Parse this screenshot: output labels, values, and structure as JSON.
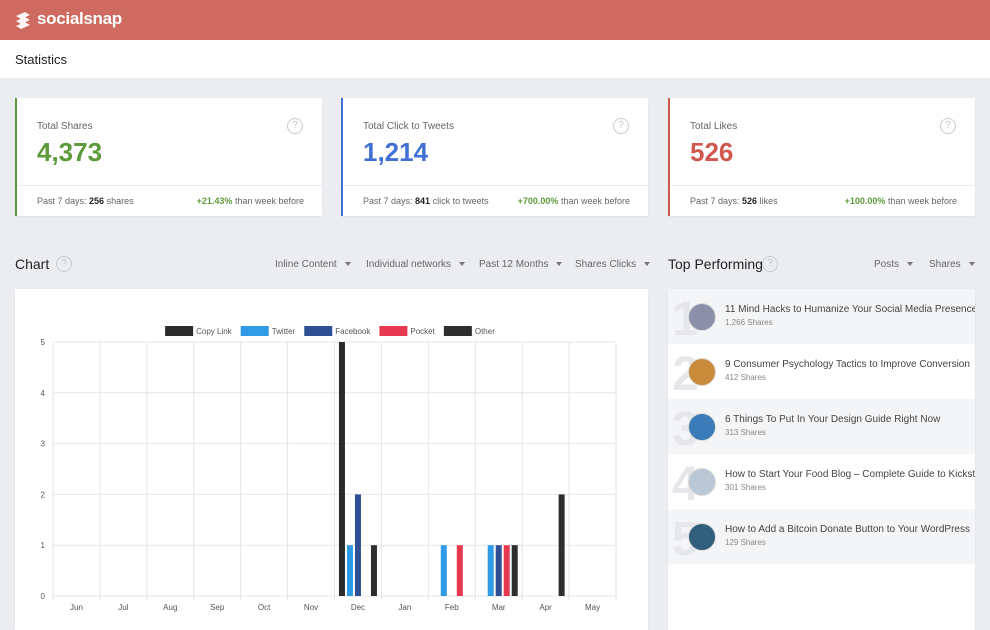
{
  "header": {
    "brand": "socialsnap"
  },
  "page_title": "Statistics",
  "help_icon": "?",
  "stat_cards": [
    {
      "label": "Total Shares",
      "value": "4,373",
      "color": "#5c9a3b",
      "period": "Past 7 days:",
      "count": "256",
      "unit": "shares",
      "change": "+21.43%",
      "comparison": "than week before"
    },
    {
      "label": "Total Click to Tweets",
      "value": "1,214",
      "color": "#4271d6",
      "period": "Past 7 days:",
      "count": "841",
      "unit": "click to tweets",
      "change": "+700.00%",
      "comparison": "than week before"
    },
    {
      "label": "Total Likes",
      "value": "526",
      "color": "#d0594f",
      "period": "Past 7 days:",
      "count": "526",
      "unit": "likes",
      "change": "+100.00%",
      "comparison": "than week before"
    }
  ],
  "chart_section": {
    "title": "Chart",
    "filters": [
      "Inline Content",
      "Individual networks",
      "Past 12 Months",
      "Shares Clicks"
    ]
  },
  "chart_data": {
    "type": "bar",
    "categories": [
      "Jun",
      "Jul",
      "Aug",
      "Sep",
      "Oct",
      "Nov",
      "Dec",
      "Jan",
      "Feb",
      "Mar",
      "Apr",
      "May"
    ],
    "series": [
      {
        "name": "Copy Link",
        "color": "#2b2b2b",
        "values": [
          0,
          0,
          0,
          0,
          0,
          0,
          5,
          0,
          0,
          0,
          0,
          0
        ]
      },
      {
        "name": "Twitter",
        "color": "#2f9be6",
        "values": [
          0,
          0,
          0,
          0,
          0,
          0,
          1,
          0,
          1,
          1,
          0,
          0
        ]
      },
      {
        "name": "Facebook",
        "color": "#2e4f94",
        "values": [
          0,
          0,
          0,
          0,
          0,
          0,
          2,
          0,
          0,
          1,
          0,
          0
        ]
      },
      {
        "name": "Pocket",
        "color": "#e6394f",
        "values": [
          0,
          0,
          0,
          0,
          0,
          0,
          0,
          0,
          1,
          1,
          0,
          0
        ]
      },
      {
        "name": "Other",
        "color": "#2e2e2e",
        "values": [
          0,
          0,
          0,
          0,
          0,
          0,
          1,
          0,
          0,
          1,
          2,
          0
        ]
      }
    ],
    "ylim": [
      0,
      5
    ],
    "yticks": [
      0,
      1,
      2,
      3,
      4,
      5
    ],
    "grid": true,
    "legend": "top"
  },
  "top_performing": {
    "title": "Top Performing",
    "filters": [
      "Posts",
      "Shares"
    ],
    "posts": [
      {
        "rank": "1",
        "title": "11 Mind Hacks to Humanize Your Social Media Presence",
        "shares": "1,266 Shares"
      },
      {
        "rank": "2",
        "title": "9 Consumer Psychology Tactics to Improve Conversion",
        "shares": "412 Shares"
      },
      {
        "rank": "3",
        "title": "6 Things To Put In Your Design Guide Right Now",
        "shares": "313 Shares"
      },
      {
        "rank": "4",
        "title": "How to Start Your Food Blog – Complete Guide to Kickstart",
        "shares": "301 Shares"
      },
      {
        "rank": "5",
        "title": "How to Add a Bitcoin Donate Button to Your WordPress",
        "shares": "129 Shares"
      }
    ]
  }
}
